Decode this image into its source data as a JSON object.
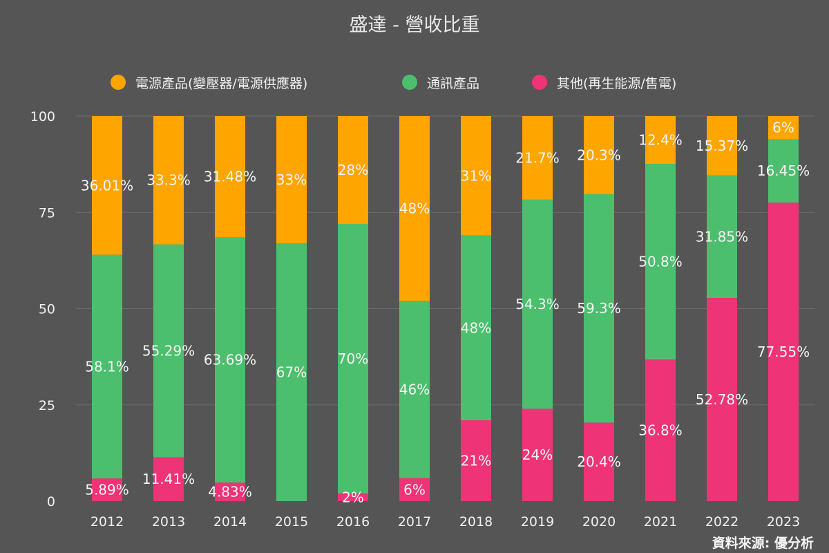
{
  "chart_data": {
    "type": "bar",
    "stacked": true,
    "title": "盛達 - 營收比重",
    "categories": [
      "2012",
      "2013",
      "2014",
      "2015",
      "2016",
      "2017",
      "2018",
      "2019",
      "2020",
      "2021",
      "2022",
      "2023"
    ],
    "series": [
      {
        "name": "其他(再生能源/售電)",
        "color": "#ee3377",
        "values": [
          5.89,
          11.41,
          4.83,
          0,
          2,
          6,
          21,
          24,
          20.4,
          36.8,
          52.78,
          77.55
        ],
        "labels": [
          "5.89%",
          "11.41%",
          "4.83%",
          "",
          "2%",
          "6%",
          "21%",
          "24%",
          "20.4%",
          "36.8%",
          "52.78%",
          "77.55%"
        ]
      },
      {
        "name": "通訊產品",
        "color": "#4cbf6e",
        "values": [
          58.1,
          55.29,
          63.69,
          67,
          70,
          46,
          48,
          54.3,
          59.3,
          50.8,
          31.85,
          16.45
        ],
        "labels": [
          "58.1%",
          "55.29%",
          "63.69%",
          "67%",
          "70%",
          "46%",
          "48%",
          "54.3%",
          "59.3%",
          "50.8%",
          "31.85%",
          "16.45%"
        ]
      },
      {
        "name": "電源產品(變壓器/電源供應器)",
        "color": "#ffa500",
        "values": [
          36.01,
          33.3,
          31.48,
          33,
          28,
          48,
          31,
          21.7,
          20.3,
          12.4,
          15.37,
          6
        ],
        "labels": [
          "36.01%",
          "33.3%",
          "31.48%",
          "33%",
          "28%",
          "48%",
          "31%",
          "21.7%",
          "20.3%",
          "12.4%",
          "15.37%",
          "6%"
        ]
      }
    ],
    "legend_order": [
      2,
      1,
      0
    ],
    "ylim": [
      0,
      100
    ],
    "yticks": [
      0,
      25,
      50,
      75,
      100
    ],
    "grid": true,
    "legend_position": "top",
    "xlabel": "",
    "ylabel": ""
  },
  "source_note": "資料來源: 優分析",
  "colors": {
    "background": "#555555",
    "grid": "#6c6c6c",
    "text": "#f0f0f0"
  }
}
